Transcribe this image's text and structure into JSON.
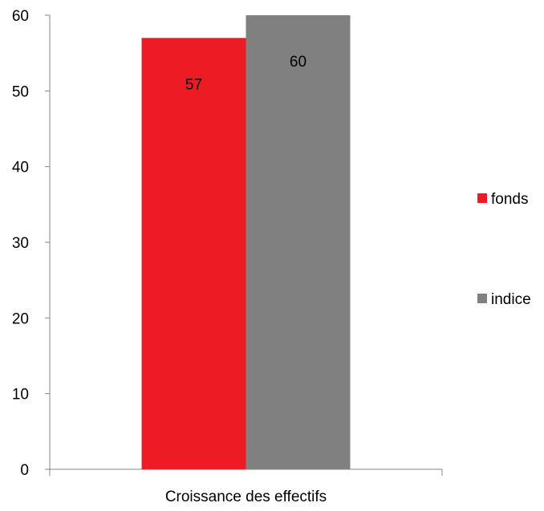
{
  "chart_data": {
    "type": "bar",
    "categories": [
      "Croissance des effectifs"
    ],
    "series": [
      {
        "name": "fonds",
        "values": [
          57
        ],
        "color": "#ED1C24"
      },
      {
        "name": "indice",
        "values": [
          60
        ],
        "color": "#808080"
      }
    ],
    "ylim": [
      0,
      60
    ],
    "yticks": [
      0,
      10,
      20,
      30,
      40,
      50,
      60
    ],
    "grid": false,
    "legend_position": "right",
    "data_labels": true
  }
}
